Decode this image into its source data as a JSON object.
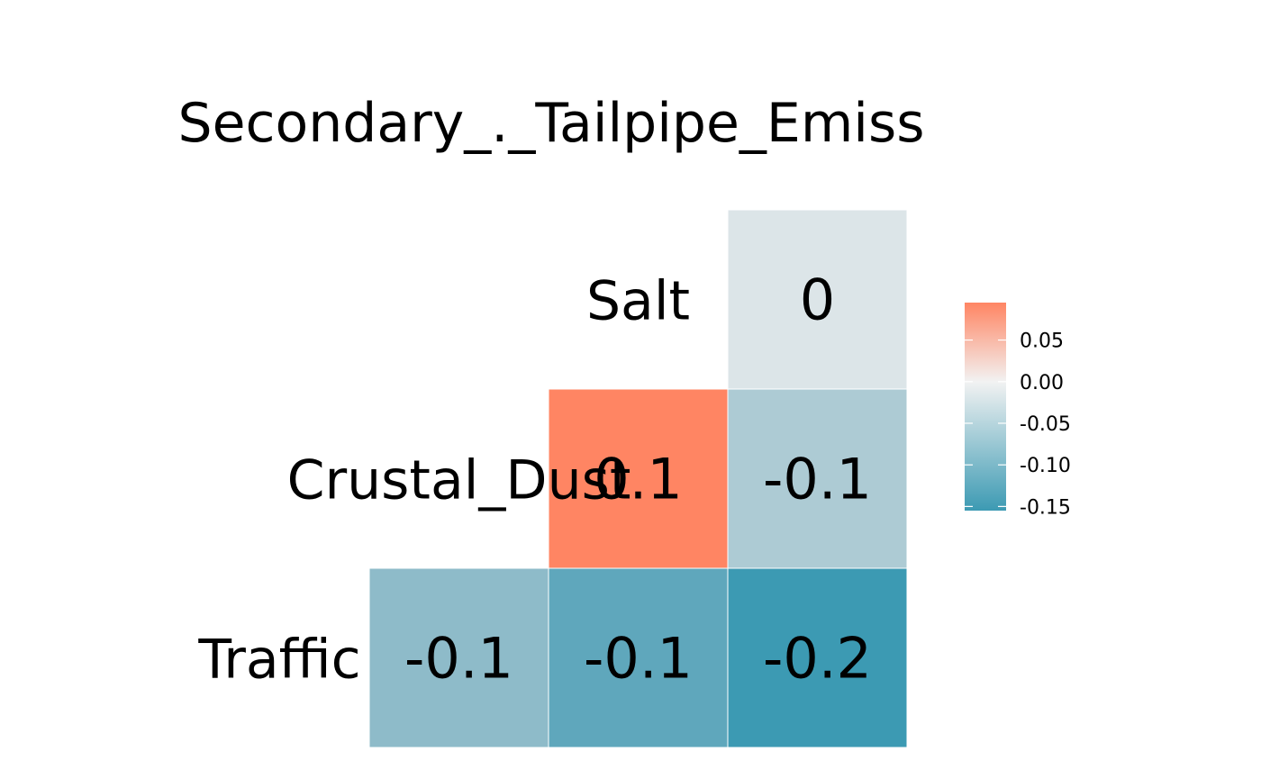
{
  "chart_data": {
    "type": "heatmap",
    "title": "",
    "xlabel": "",
    "ylabel": "",
    "layout": "lower-triangle correlation matrix",
    "grid": false,
    "legend_placement": "right",
    "variables": [
      "Traffic",
      "Crustal_Dust",
      "Salt",
      "Secondary_._Tailpipe_Emiss"
    ],
    "cells": [
      {
        "row": "Salt",
        "col": "Secondary_._Tailpipe_Emiss",
        "value": 0,
        "label": "0",
        "fill": "#dce5e8"
      },
      {
        "row": "Crustal_Dust",
        "col": "Salt",
        "value": 0.1,
        "label": "0.1",
        "fill": "#ff8563"
      },
      {
        "row": "Crustal_Dust",
        "col": "Secondary_._Tailpipe_Emiss",
        "value": -0.1,
        "label": "-0.1",
        "fill": "#adcbd4"
      },
      {
        "row": "Traffic",
        "col": "Crustal_Dust",
        "value": -0.1,
        "label": "-0.1",
        "fill": "#8ebbc9"
      },
      {
        "row": "Traffic",
        "col": "Salt",
        "value": -0.1,
        "label": "-0.1",
        "fill": "#5fa7bc"
      },
      {
        "row": "Traffic",
        "col": "Secondary_._Tailpipe_Emiss",
        "value": -0.2,
        "label": "-0.2",
        "fill": "#3c9ab3"
      }
    ],
    "colorbar": {
      "range": [
        -0.155,
        0.095
      ],
      "ticks": [
        0.05,
        0.0,
        -0.05,
        -0.1,
        -0.15
      ],
      "tick_labels": [
        "0.05",
        "0.00",
        "-0.05",
        "-0.10",
        "-0.15"
      ],
      "colors": {
        "low": "#3c9ab3",
        "mid": "#f2f2f2",
        "high": "#ff8563"
      }
    }
  }
}
